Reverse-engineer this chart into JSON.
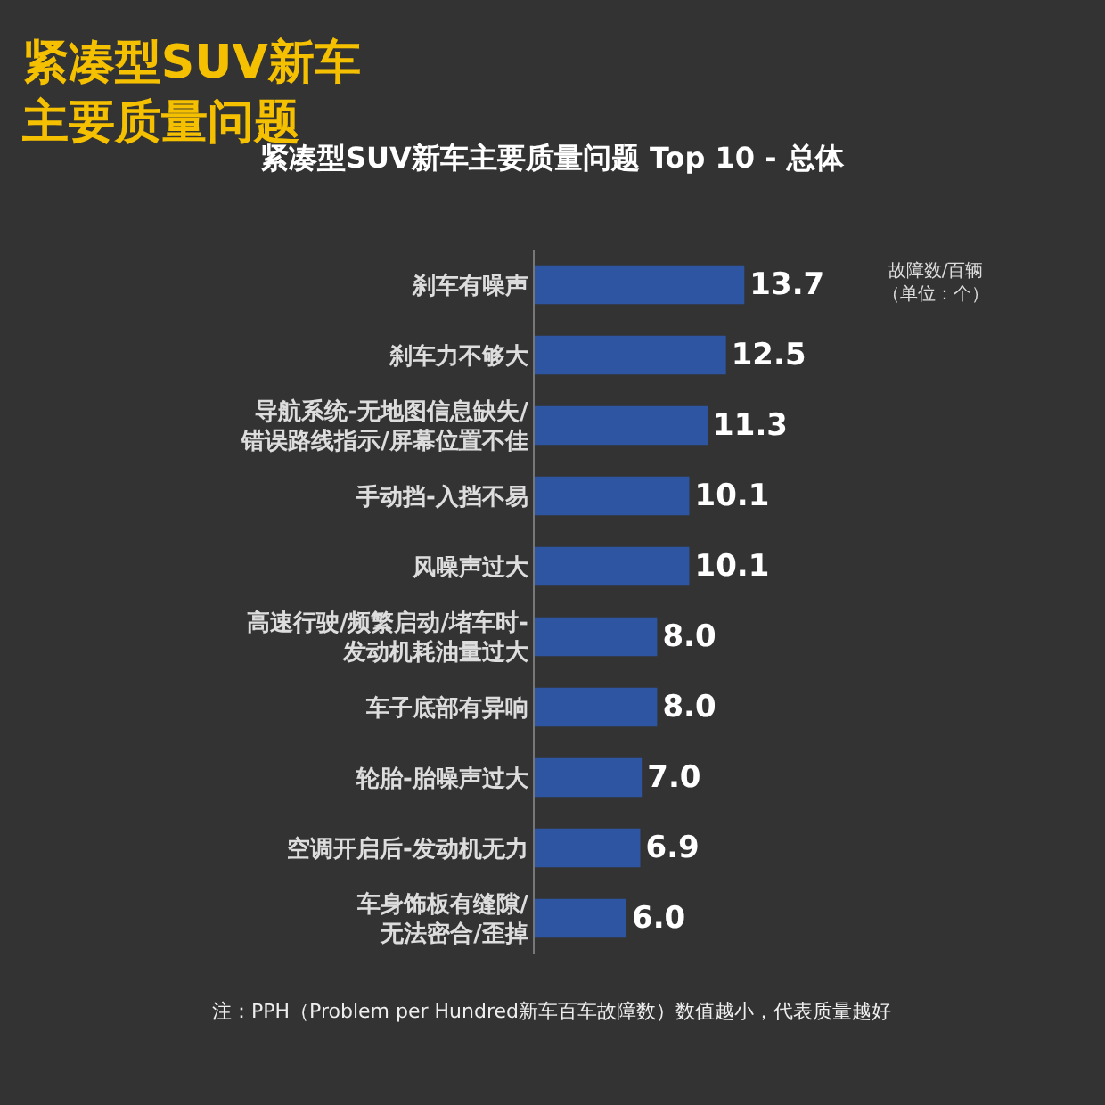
{
  "chart_data": {
    "type": "bar",
    "orientation": "horizontal",
    "title": "紧凑型SUV新车主要质量问题",
    "subtitle": "紧凑型SUV新车主要质量问题 Top 10 - 总体",
    "categories": [
      "刹车有噪声",
      "刹车力不够大",
      "导航系统-无地图信息缺失/\n错误路线指示/屏幕位置不佳",
      "手动挡-入挡不易",
      "风噪声过大",
      "高速行驶/频繁启动/堵车时-\n发动机耗油量过大",
      "车子底部有异响",
      "轮胎-胎噪声过大",
      "空调开启后-发动机无力",
      "车身饰板有缝隙/\n无法密合/歪掉"
    ],
    "values": [
      13.7,
      12.5,
      11.3,
      10.1,
      10.1,
      8.0,
      8.0,
      7.0,
      6.9,
      6.0
    ],
    "value_labels": [
      "13.7",
      "12.5",
      "11.3",
      "10.1",
      "10.1",
      "8.0",
      "8.0",
      "7.0",
      "6.9",
      "6.0"
    ],
    "color": "#2e55a2",
    "legend": false,
    "annotations": [
      "故障数/百辆（单位：个）",
      "注：PPH（Problem per Hundred新车百车故障数）数值越小，代表质量越好"
    ]
  }
}
